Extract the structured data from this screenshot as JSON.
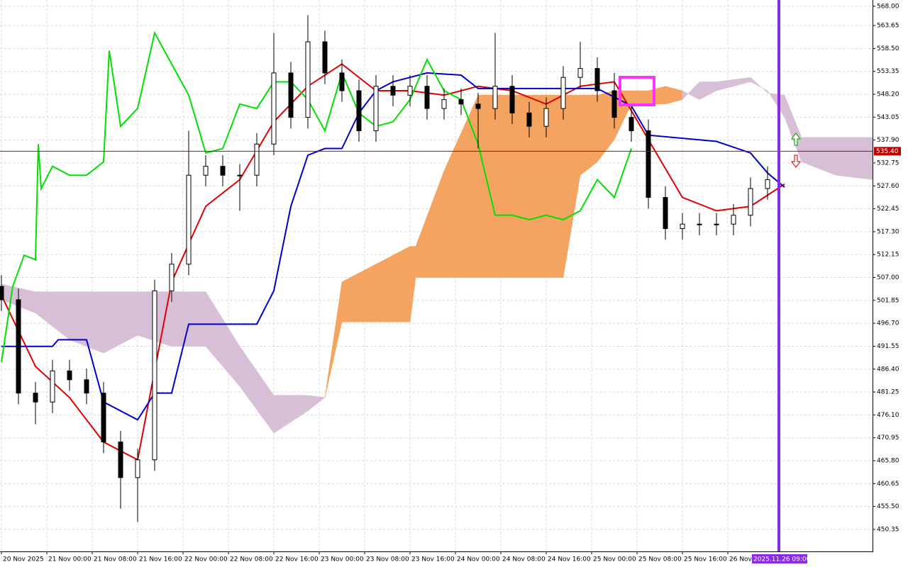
{
  "chart_data": {
    "type": "candlestick",
    "xlim": [
      -0.25,
      153.5
    ],
    "ylim": [
      445.4,
      569.4
    ],
    "grid": true,
    "xticks": [
      {
        "value": 0,
        "label": "20 Nov 2025"
      },
      {
        "value": 8,
        "label": "21 Nov 00:00"
      },
      {
        "value": 16,
        "label": "21 Nov 08:00"
      },
      {
        "value": 24,
        "label": "21 Nov 16:00"
      },
      {
        "value": 32,
        "label": "22 Nov 00:00"
      },
      {
        "value": 40,
        "label": "22 Nov 08:00"
      },
      {
        "value": 48,
        "label": "22 Nov 16:00"
      },
      {
        "value": 56,
        "label": "23 Nov 00:00"
      },
      {
        "value": 64,
        "label": "23 Nov 08:00"
      },
      {
        "value": 72,
        "label": "23 Nov 16:00"
      },
      {
        "value": 80,
        "label": "24 Nov 00:00"
      },
      {
        "value": 88,
        "label": "24 Nov 08:00"
      },
      {
        "value": 96,
        "label": "24 Nov 16:00"
      },
      {
        "value": 104,
        "label": "25 Nov 00:00"
      },
      {
        "value": 112,
        "label": "25 Nov 08:00"
      },
      {
        "value": 120,
        "label": "25 Nov 16:00"
      },
      {
        "value": 128,
        "label": "26 Nov 00:00"
      }
    ],
    "yticks": [
      {
        "value": 568,
        "label": "568.00"
      },
      563.65,
      {
        "value": 558.5,
        "label": "558.50"
      },
      553.35,
      {
        "value": 548.2,
        "label": "548.20"
      },
      543.05,
      {
        "value": 537.9,
        "label": "537.90"
      },
      532.75,
      {
        "value": 527.6,
        "label": "527.60"
      },
      522.45,
      {
        "value": 517.3,
        "label": "517.30"
      },
      512.15,
      {
        "value": 507,
        "label": "507.00"
      },
      501.85,
      {
        "value": 496.7,
        "label": "496.70"
      },
      491.55,
      {
        "value": 486.4,
        "label": "486.40"
      },
      481.25,
      {
        "value": 476.1,
        "label": "476.10"
      },
      470.95,
      {
        "value": 465.8,
        "label": "465.80"
      },
      460.65,
      {
        "value": 455.5,
        "label": "455.50"
      },
      450.35
    ],
    "candles": {
      "x": [
        0,
        3,
        6,
        9,
        12,
        15,
        18,
        21,
        24,
        27,
        30,
        33,
        36,
        39,
        42,
        45,
        48,
        51,
        54,
        57,
        60,
        63,
        66,
        69,
        72,
        75,
        78,
        81,
        84,
        87,
        90,
        93,
        96,
        99,
        102,
        105,
        108,
        111,
        114,
        117,
        120,
        123,
        126,
        129,
        132,
        135
      ],
      "open": [
        505,
        502,
        481,
        479,
        486,
        484,
        481,
        470,
        462,
        466,
        504,
        510,
        530,
        532,
        530,
        530,
        537,
        553,
        543,
        560,
        553,
        549,
        540,
        550,
        548,
        550,
        545,
        547,
        546,
        545,
        550,
        544,
        541,
        545,
        552,
        554,
        549,
        543,
        540,
        525,
        518,
        519,
        519,
        519,
        521,
        527
      ],
      "high": [
        507.5,
        504.5,
        483.5,
        488.5,
        488.5,
        486.5,
        483.5,
        472.5,
        468.5,
        506.5,
        512.5,
        540,
        534.5,
        534.5,
        532.5,
        539.5,
        562,
        555.5,
        566,
        562.5,
        556,
        551.5,
        552.5,
        552.5,
        552.5,
        552.5,
        549.5,
        549.5,
        548.5,
        562,
        552.5,
        546.5,
        547.5,
        554.5,
        560,
        556.5,
        553,
        545.5,
        542.5,
        527.5,
        521.5,
        521.5,
        521.5,
        523.5,
        529.5,
        532
      ],
      "low": [
        499.5,
        478.5,
        474,
        476.5,
        481.5,
        478.5,
        467.5,
        455,
        452,
        463.5,
        501.5,
        507.5,
        527.5,
        527.5,
        522,
        527.5,
        534.5,
        540.5,
        540.5,
        550.5,
        546.5,
        537.5,
        537.5,
        545.5,
        545.5,
        542.5,
        542.5,
        543.5,
        536,
        542.5,
        541.5,
        538.5,
        538.5,
        542.5,
        549.5,
        546.5,
        540.5,
        537.5,
        522.5,
        515.5,
        515.5,
        516.5,
        516.5,
        516.5,
        518.5,
        524.5
      ],
      "close": [
        502,
        481,
        479,
        486,
        484,
        481,
        470,
        462,
        466,
        504,
        510,
        530,
        532,
        530,
        530,
        537,
        553,
        543,
        560,
        553,
        549,
        540,
        550,
        548,
        550,
        545,
        547,
        546,
        545,
        550,
        544,
        541,
        545,
        552,
        554,
        549,
        543,
        540,
        525,
        518,
        519,
        519,
        519,
        521,
        527,
        529
      ],
      "up_color": "#ffffff",
      "down_color": "#000000"
    },
    "lines": [
      {
        "color": "#e00000",
        "x": [
          0,
          6,
          12,
          18,
          24,
          30,
          36,
          42,
          48,
          54,
          60,
          66,
          72,
          78,
          84,
          90,
          96,
          102,
          108,
          114,
          120,
          126,
          132,
          138
        ],
        "values": [
          503,
          487,
          480,
          470,
          466,
          506,
          523,
          529,
          542,
          550,
          555,
          549,
          549,
          548,
          550,
          549,
          546,
          550,
          551,
          538,
          525,
          522,
          523,
          528
        ]
      },
      {
        "color": "#0000cc",
        "x": [
          0,
          9,
          10,
          15,
          18,
          24,
          27,
          30,
          33,
          42,
          45,
          48,
          51,
          54,
          57,
          60,
          63,
          66,
          69,
          75,
          81,
          84,
          105,
          111,
          114,
          126,
          132,
          135,
          138
        ],
        "values": [
          491.5,
          491.5,
          493,
          493,
          479,
          475,
          481,
          481,
          496.5,
          496.5,
          496.5,
          504,
          523,
          534.5,
          536,
          536,
          544,
          549,
          551,
          553,
          552.5,
          549.5,
          549.5,
          545.6,
          539,
          537.6,
          535,
          530.5,
          527.3
        ]
      },
      {
        "color": "#00e000",
        "x": [
          0,
          2,
          4,
          6,
          6.5,
          7,
          9,
          12,
          15,
          18,
          19,
          21,
          24,
          27,
          30,
          33,
          36,
          39,
          42,
          45,
          48,
          51,
          54,
          57,
          60,
          63,
          66,
          69,
          72,
          75,
          78,
          81,
          84,
          87,
          90,
          93,
          96,
          99,
          102,
          105,
          108,
          111
        ],
        "values": [
          488,
          505,
          512,
          511,
          537,
          527,
          532,
          530,
          530,
          533,
          558,
          541,
          545,
          562,
          555,
          548,
          535,
          536,
          546,
          545,
          551,
          551,
          547,
          540,
          553,
          544,
          541,
          542,
          547,
          556,
          549,
          547,
          537,
          521,
          521,
          520,
          521,
          520,
          522,
          529,
          525,
          536
        ]
      }
    ],
    "cloud": {
      "x": [
        0,
        6,
        12,
        18,
        24,
        30,
        36,
        42,
        48,
        54,
        57,
        60,
        66,
        72,
        73,
        78,
        84,
        90,
        96,
        99,
        102,
        105,
        108,
        111,
        114,
        117,
        120,
        123,
        126,
        132,
        135,
        138,
        141,
        147,
        153.5
      ],
      "span_a": [
        502,
        499,
        493,
        490,
        494,
        491.5,
        491.5,
        482.5,
        472,
        477,
        480,
        506,
        510,
        514,
        514,
        531,
        548,
        548,
        548,
        548,
        548,
        548,
        549,
        549,
        549,
        550,
        549,
        547,
        549,
        551,
        549,
        543,
        533,
        530,
        529
      ],
      "span_b": [
        505.5,
        503.8,
        503.8,
        503.8,
        503.8,
        503.8,
        503.8,
        491.5,
        480.5,
        480.5,
        480,
        497,
        497,
        497,
        507,
        507,
        507,
        507,
        507,
        507,
        530,
        533,
        538,
        546,
        546,
        546,
        547,
        551,
        551,
        552,
        548.5,
        548,
        538.5,
        538.5,
        538.5
      ],
      "bull_color": "#f4a460",
      "bear_color": "#d8bfd8"
    },
    "last_price": {
      "value": 535.4,
      "label": "535.40",
      "color": "#c00000"
    },
    "cursor": {
      "x": 137,
      "label": "2025.11.26 09:00",
      "color": "#8a2be2"
    }
  }
}
